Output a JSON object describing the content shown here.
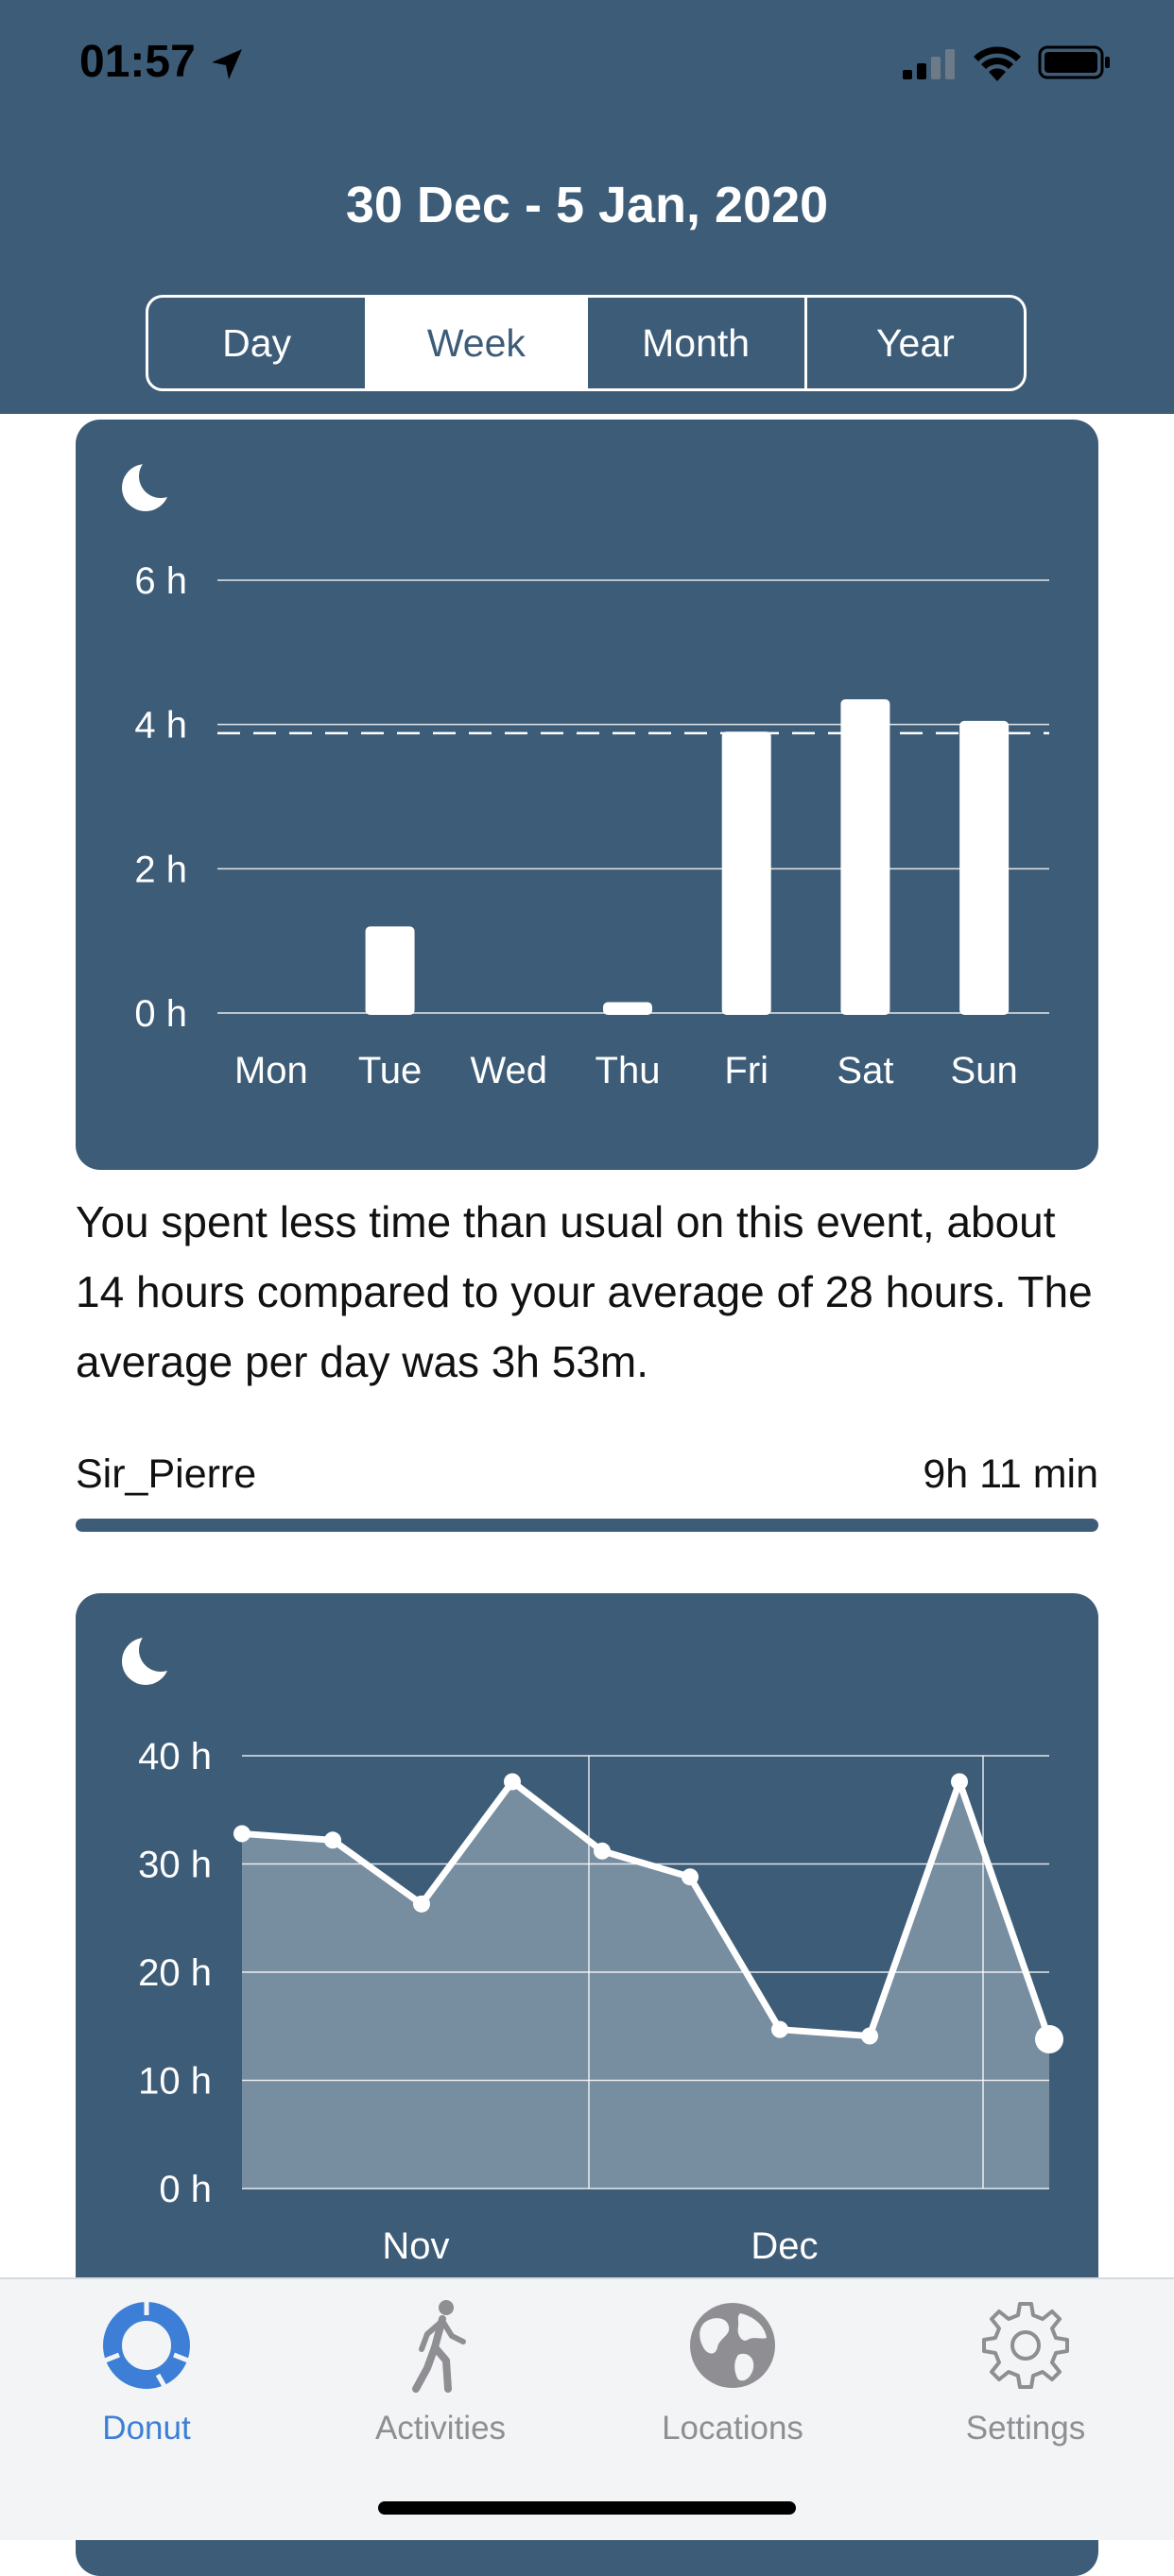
{
  "status_bar": {
    "time": "01:57"
  },
  "header": {
    "title": "30 Dec - 5 Jan, 2020",
    "segments": [
      {
        "label": "Day",
        "active": false
      },
      {
        "label": "Week",
        "active": true
      },
      {
        "label": "Month",
        "active": false
      },
      {
        "label": "Year",
        "active": false
      }
    ]
  },
  "chart_data": [
    {
      "type": "bar",
      "categories": [
        "Mon",
        "Tue",
        "Wed",
        "Thu",
        "Fri",
        "Sat",
        "Sun"
      ],
      "values": [
        0,
        1.2,
        0,
        0.15,
        3.9,
        4.35,
        4.05
      ],
      "y_tick_labels": [
        "0 h",
        "2 h",
        "4 h",
        "6 h"
      ],
      "y_ticks": [
        0,
        2,
        4,
        6
      ],
      "ylim": [
        0,
        6
      ],
      "average_line": 3.88,
      "grid": true,
      "icon": "moon-icon"
    },
    {
      "type": "area",
      "values": [
        32.8,
        32.2,
        26.3,
        37.6,
        31.2,
        28.8,
        14.7,
        14.1,
        37.6,
        13.8
      ],
      "x_tick_labels": [
        "Nov",
        "Dec"
      ],
      "y_tick_labels": [
        "0 h",
        "10 h",
        "20 h",
        "30 h",
        "40 h"
      ],
      "y_ticks": [
        0,
        10,
        20,
        30,
        40
      ],
      "ylim": [
        0,
        40
      ],
      "grid": true,
      "icon": "moon-icon"
    }
  ],
  "summary": "You spent less time than usual on this event, about 14 hours compared to your average of 28 hours. The average per day was 3h 53m.",
  "person": {
    "name": "Sir_Pierre",
    "time": "9h 11 min",
    "fraction": 1.0
  },
  "tabbar": [
    {
      "label": "Donut",
      "icon": "donut-icon",
      "active": true
    },
    {
      "label": "Activities",
      "icon": "walking-person-icon",
      "active": false
    },
    {
      "label": "Locations",
      "icon": "globe-icon",
      "active": false
    },
    {
      "label": "Settings",
      "icon": "gear-icon",
      "active": false
    }
  ],
  "colors": {
    "header": "#3d5c78",
    "accent": "#3d7fd6",
    "tab_inactive": "#8e8e93"
  }
}
